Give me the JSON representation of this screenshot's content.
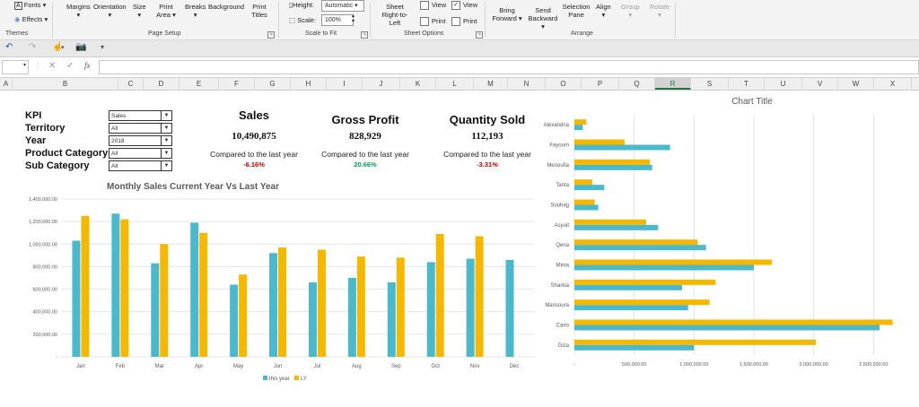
{
  "ribbon": {
    "themes": {
      "fonts": "Fonts",
      "effects": "Effects",
      "group": "Themes"
    },
    "page_setup": {
      "margins": "Margins",
      "orientation": "Orientation",
      "size": "Size",
      "print_area": "Print Area",
      "breaks": "Breaks",
      "background": "Background",
      "print_titles": "Print Titles",
      "group": "Page Setup"
    },
    "scale_to_fit": {
      "height_label": "Height:",
      "height_value": "Automatic",
      "scale_label": "Scale:",
      "scale_value": "100%",
      "group": "Scale to Fit"
    },
    "sheet_options": {
      "sheet_rtl": "Sheet Right-to-Left",
      "view1": "View",
      "print1": "Print",
      "view2": "View",
      "print2": "Print",
      "group": "Sheet Options"
    },
    "arrange": {
      "bring_forward": "Bring Forward",
      "send_backward": "Send Backward",
      "selection_pane": "Selection Pane",
      "align": "Align",
      "group_btn": "Group",
      "rotate": "Rotate",
      "group": "Arrange"
    }
  },
  "formula_bar": {
    "fx": "fx"
  },
  "columns": [
    "A",
    "B",
    "C",
    "D",
    "E",
    "F",
    "G",
    "H",
    "I",
    "J",
    "K",
    "L",
    "M",
    "N",
    "O",
    "P",
    "Q",
    "R",
    "S",
    "T",
    "U",
    "V",
    "W",
    "X"
  ],
  "selected_column": "R",
  "filters": [
    {
      "label": "KPI",
      "value": "Sales"
    },
    {
      "label": "Territory",
      "value": "All"
    },
    {
      "label": "Year",
      "value": "2018"
    },
    {
      "label": "Product Category",
      "value": "All"
    },
    {
      "label": "Sub Category",
      "value": "All"
    }
  ],
  "kpis": [
    {
      "title": "Sales",
      "value": "10,490,875",
      "compare": "Compared to the last year",
      "change": "-6.16%",
      "color": "#c00000"
    },
    {
      "title": "Gross Profit",
      "value": "828,929",
      "compare": "Compared to the last year",
      "change": "20.66%",
      "color": "#00a050"
    },
    {
      "title": "Quantity Sold",
      "value": "112,193",
      "compare": "Compared to the last year",
      "change": "-3.31%",
      "color": "#c00000"
    }
  ],
  "colors": {
    "this_year": "#4bb8cc",
    "ly": "#f5b800"
  },
  "chart_data": [
    {
      "type": "bar",
      "title": "Monthly Sales Current Year Vs Last Year",
      "categories": [
        "Jan",
        "Feb",
        "Mar",
        "Apr",
        "May",
        "Jun",
        "Jul",
        "Aug",
        "Sep",
        "Oct",
        "Nov",
        "Dec"
      ],
      "series": [
        {
          "name": "this year",
          "values": [
            1030000,
            1270000,
            830000,
            1190000,
            640000,
            920000,
            660000,
            700000,
            660000,
            840000,
            870000,
            860000
          ]
        },
        {
          "name": "LY",
          "values": [
            1250000,
            1220000,
            1000000,
            1100000,
            730000,
            970000,
            950000,
            890000,
            880000,
            1090000,
            1070000,
            null
          ]
        }
      ],
      "ylim": [
        0,
        1400000
      ],
      "yticks": [
        "-",
        "200,000.00",
        "400,000.00",
        "600,000.00",
        "800,000.00",
        "1,000,000.00",
        "1,200,000.00",
        "1,400,000.00"
      ],
      "legend": "bottom"
    },
    {
      "type": "bar",
      "orientation": "horizontal",
      "title": "Chart Title",
      "categories": [
        "Alexandria",
        "Fayoum",
        "Menoufia",
        "Tanta",
        "Souhag",
        "Asyuit",
        "Qena",
        "Minia",
        "Sharkia",
        "Mansoura",
        "Cairo",
        "Giza"
      ],
      "series": [
        {
          "name": "this year",
          "values": [
            70000,
            800000,
            650000,
            250000,
            200000,
            700000,
            1100000,
            1500000,
            900000,
            950000,
            2550000,
            1000000
          ]
        },
        {
          "name": "LY",
          "values": [
            100000,
            420000,
            630000,
            150000,
            170000,
            600000,
            1030000,
            1650000,
            1180000,
            1130000,
            2660000,
            2020000
          ]
        }
      ],
      "xlim": [
        0,
        2700000
      ],
      "xticks": [
        "-",
        "500,000.00",
        "1,000,000.00",
        "1,500,000.00",
        "2,000,000.00",
        "2,500,000.00"
      ]
    }
  ]
}
